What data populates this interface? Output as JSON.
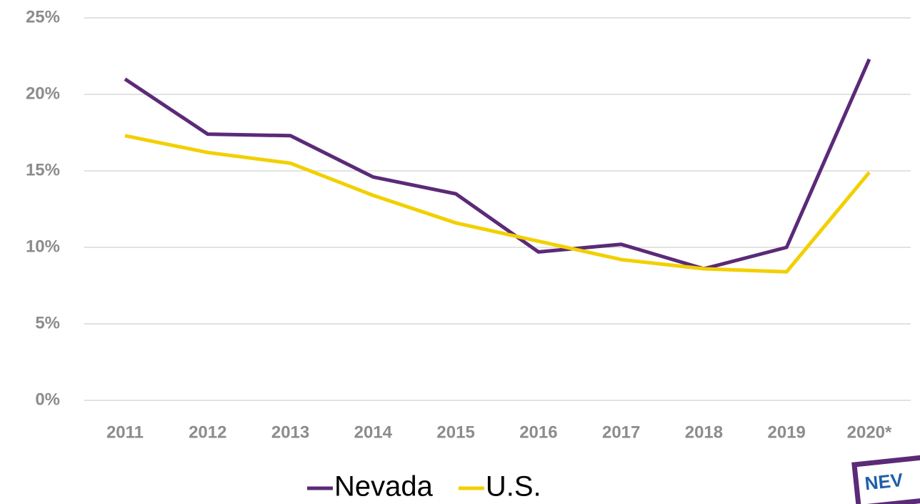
{
  "chart_data": {
    "type": "line",
    "categories": [
      "2011",
      "2012",
      "2013",
      "2014",
      "2015",
      "2016",
      "2017",
      "2018",
      "2019",
      "2020*"
    ],
    "series": [
      {
        "name": "Nevada",
        "color": "#5b2a78",
        "values": [
          21.0,
          17.4,
          17.3,
          14.6,
          13.5,
          9.7,
          10.2,
          8.6,
          10.0,
          22.3
        ]
      },
      {
        "name": "U.S.",
        "color": "#f2d000",
        "values": [
          17.3,
          16.2,
          15.5,
          13.4,
          11.6,
          10.4,
          9.2,
          8.6,
          8.4,
          14.9
        ]
      }
    ],
    "ylim": [
      0,
      25
    ],
    "yticks": [
      {
        "value": 0,
        "label": "0%"
      },
      {
        "value": 5,
        "label": "5%"
      },
      {
        "value": 10,
        "label": "10%"
      },
      {
        "value": 15,
        "label": "15%"
      },
      {
        "value": 20,
        "label": "20%"
      },
      {
        "value": 25,
        "label": "25%"
      }
    ],
    "grid": true,
    "legend": "bottom",
    "logo": "NEV"
  }
}
